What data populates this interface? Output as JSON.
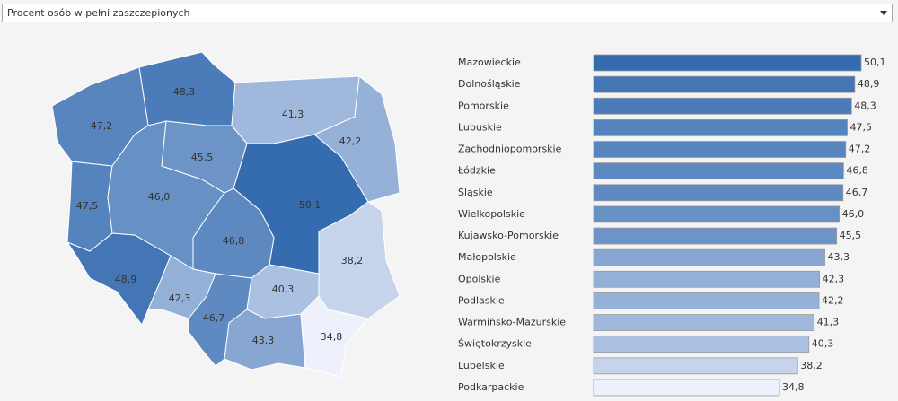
{
  "dropdown": {
    "label": "Procent osób w pełni zaszczepionych"
  },
  "chart_data": {
    "type": "bar",
    "categories": [
      "Mazowieckie",
      "Dolnośląskie",
      "Pomorskie",
      "Lubuskie",
      "Zachodniopomorskie",
      "Łódzkie",
      "Śląskie",
      "Wielkopolskie",
      "Kujawsko-Pomorskie",
      "Małopolskie",
      "Opolskie",
      "Podlaskie",
      "Warmińsko-Mazurskie",
      "Świętokrzyskie",
      "Lubelskie",
      "Podkarpackie"
    ],
    "values": [
      50.1,
      48.9,
      48.3,
      47.5,
      47.2,
      46.8,
      46.7,
      46.0,
      45.5,
      43.3,
      42.3,
      42.2,
      41.3,
      40.3,
      38.2,
      34.8
    ],
    "value_labels": [
      "50,1",
      "48,9",
      "48,3",
      "47,5",
      "47,2",
      "46,8",
      "46,7",
      "46,0",
      "45,5",
      "43,3",
      "42,3",
      "42,2",
      "41,3",
      "40,3",
      "38,2",
      "34,8"
    ],
    "color_scale": [
      "#eef1fc",
      "#356cb0"
    ]
  }
}
